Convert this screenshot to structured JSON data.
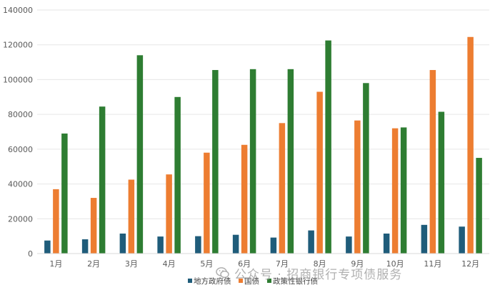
{
  "chart_data": {
    "type": "bar",
    "categories": [
      "1月",
      "2月",
      "3月",
      "4月",
      "5月",
      "6月",
      "7月",
      "8月",
      "9月",
      "10月",
      "11月",
      "12月"
    ],
    "series": [
      {
        "name": "地方政府债",
        "color": "#1f5c7a",
        "values": [
          7500,
          8200,
          11500,
          9800,
          10000,
          10800,
          9200,
          13300,
          9800,
          11500,
          16500,
          15500
        ]
      },
      {
        "name": "国债",
        "color": "#ed7d31",
        "values": [
          37000,
          32000,
          42500,
          45500,
          58000,
          62500,
          75000,
          93000,
          76500,
          72000,
          105500,
          124500
        ]
      },
      {
        "name": "政策性银行债",
        "color": "#2e7d32",
        "values": [
          69000,
          84500,
          114000,
          90000,
          105500,
          106000,
          106000,
          122500,
          98000,
          72500,
          81500,
          55000
        ]
      }
    ],
    "ylim": [
      0,
      140000
    ],
    "yticks": [
      0,
      20000,
      40000,
      60000,
      80000,
      100000,
      120000,
      140000
    ],
    "ytick_labels": [
      "0",
      "20000",
      "40000",
      "60000",
      "80000",
      "100000",
      "120000",
      "140000"
    ],
    "grid": true,
    "legend_position": "bottom",
    "title": "",
    "xlabel": "",
    "ylabel": ""
  },
  "watermark": {
    "text": "公众号 · 招商银行专项债服务",
    "icon": "wechat-icon"
  }
}
